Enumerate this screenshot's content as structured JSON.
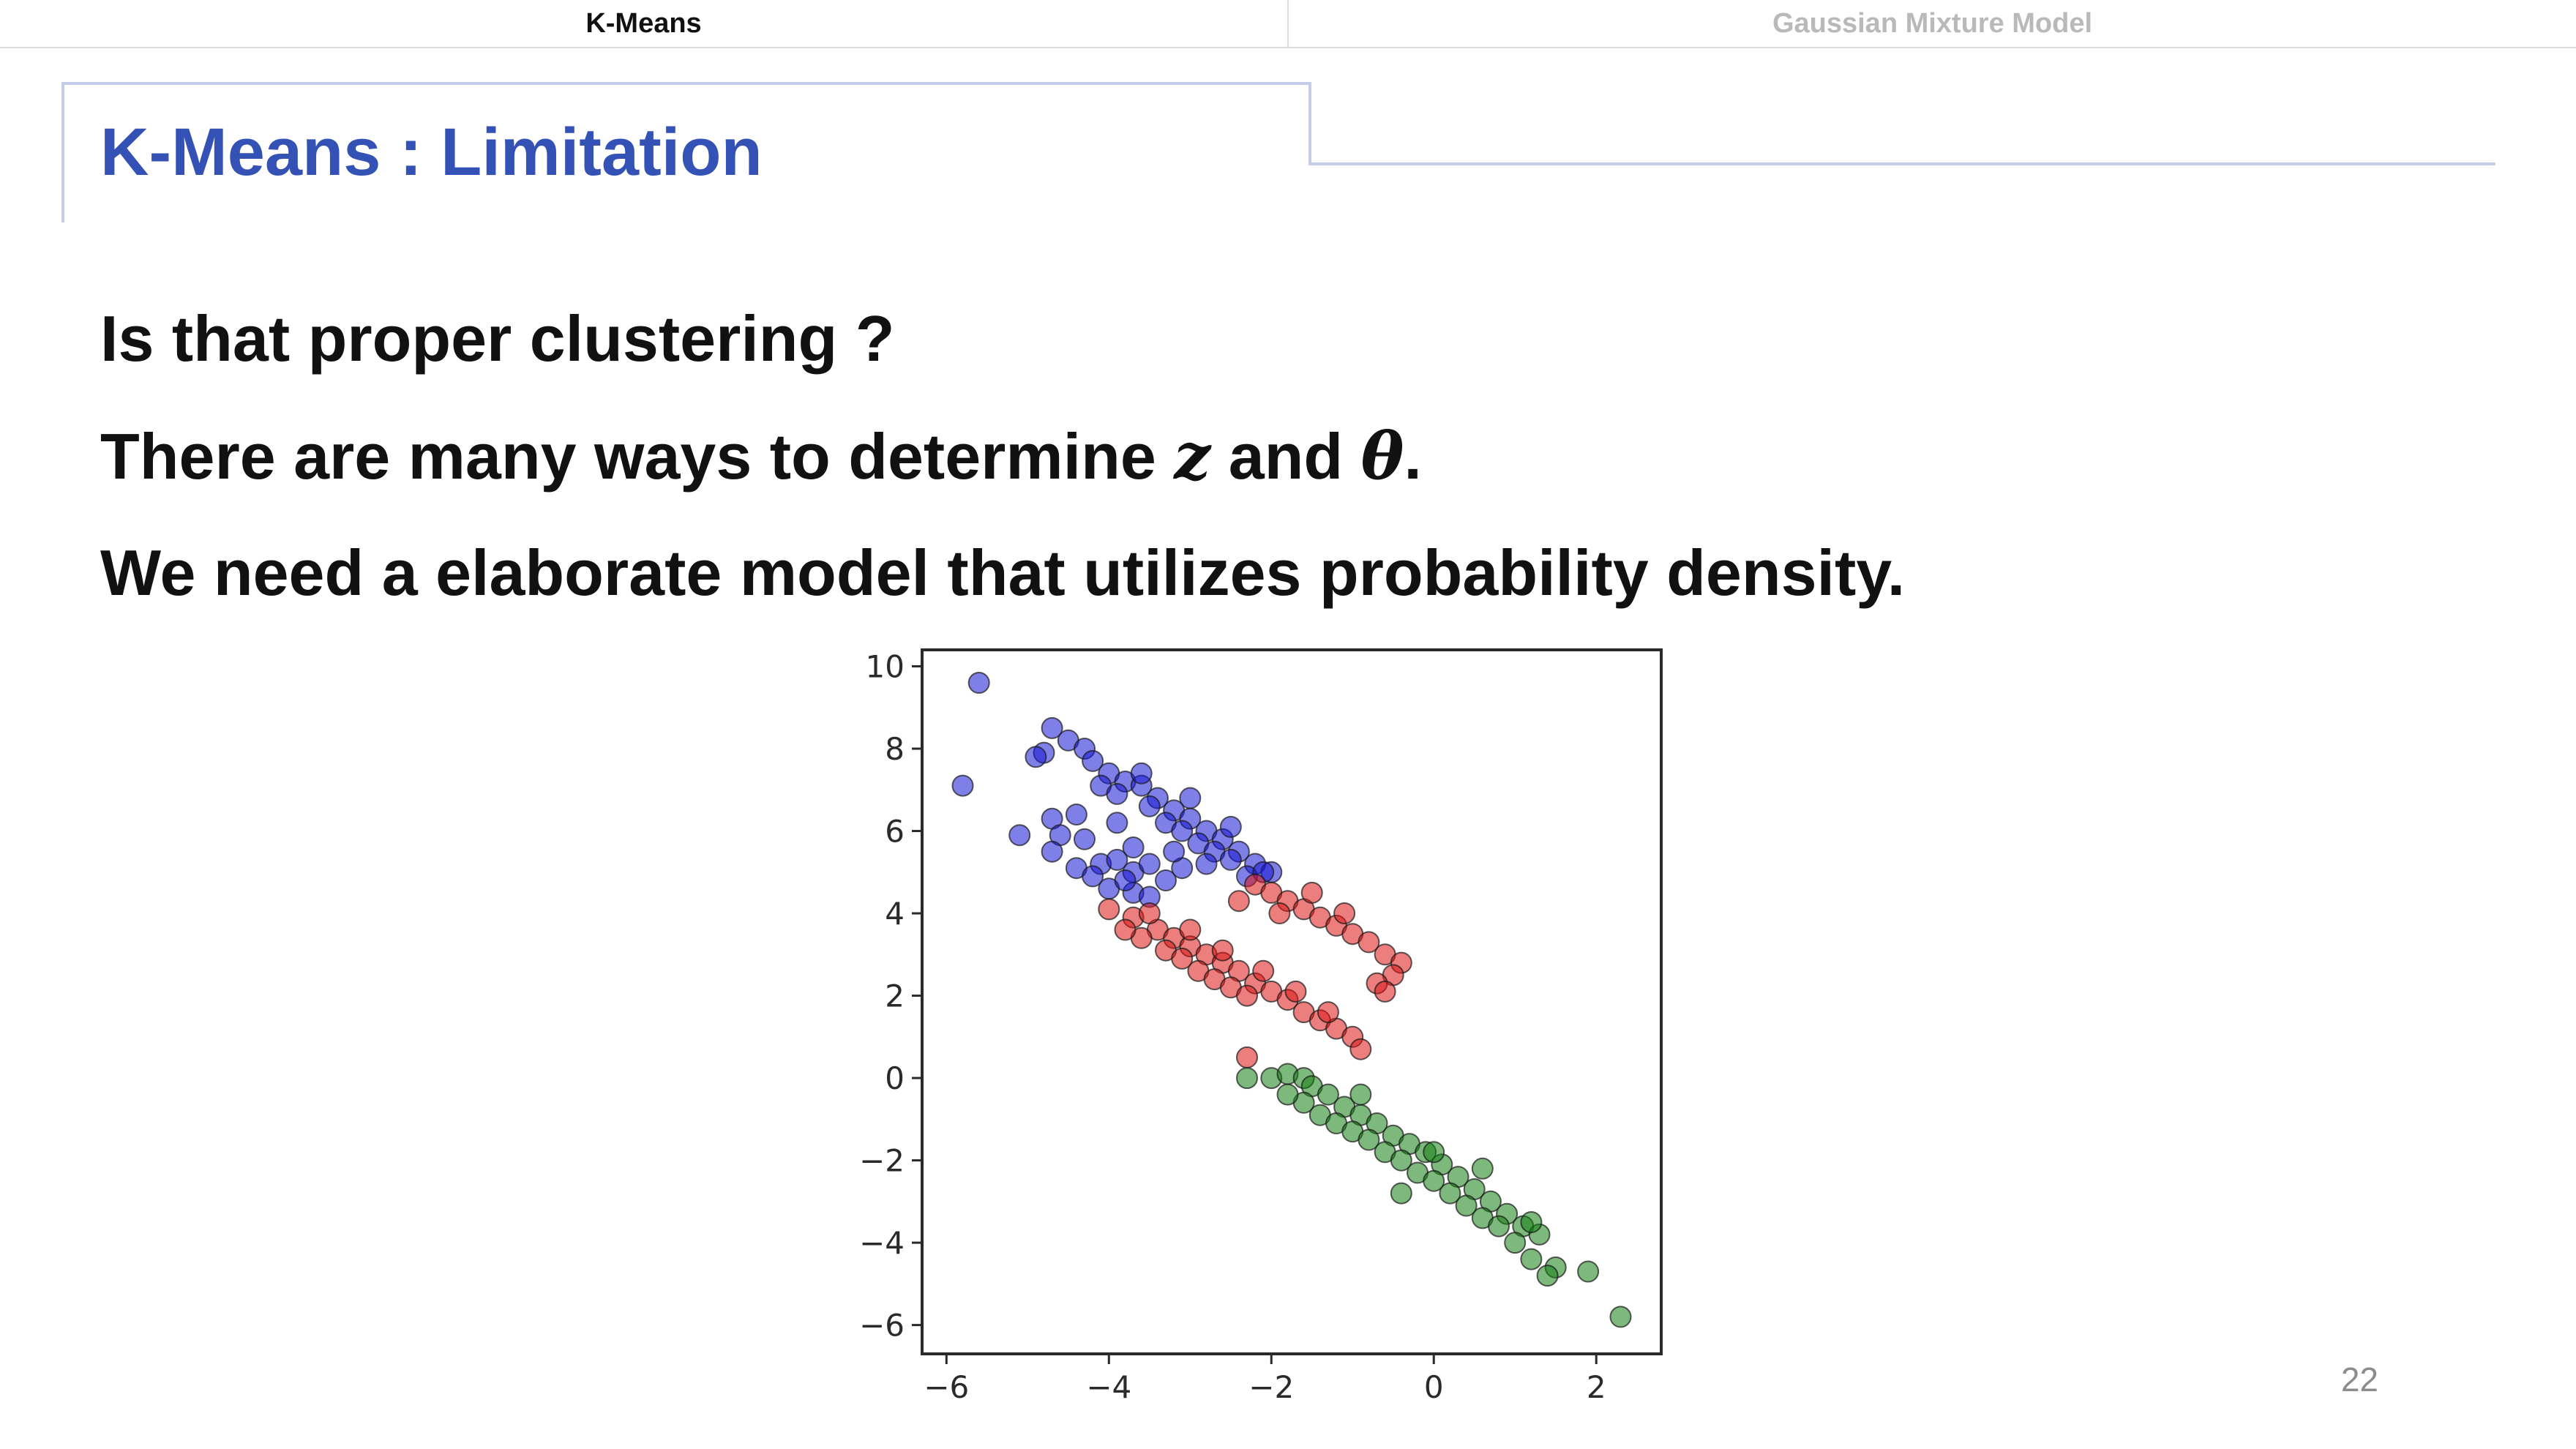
{
  "nav": {
    "tabs": [
      {
        "label": "K-Means",
        "active": true
      },
      {
        "label": "Gaussian Mixture Model",
        "active": false
      }
    ]
  },
  "slide": {
    "title": "K-Means : Limitation",
    "bullets": {
      "b1": "Is that proper clustering ?",
      "b2_pre": "There are many ways to determine ",
      "b2_z": "z",
      "b2_mid": " and ",
      "b2_theta": "θ",
      "b2_post": ".",
      "b3": "We need a elaborate model that utilizes probability density."
    },
    "page_number": "22"
  },
  "colors": {
    "title": "#3452b6",
    "frame": "#c5cde8",
    "blue": "#1515d6",
    "red": "#dc1414",
    "green": "#138013"
  },
  "chart_data": {
    "type": "scatter",
    "xlim": [
      -6.3,
      2.8
    ],
    "ylim": [
      -6.7,
      10.4
    ],
    "xticks": [
      -6,
      -4,
      -2,
      0,
      2
    ],
    "xtick_labels": [
      "−6",
      "−4",
      "−2",
      "0",
      "2"
    ],
    "yticks": [
      10,
      8,
      6,
      4,
      2,
      0,
      -2,
      -4,
      -6
    ],
    "ytick_labels": [
      "10",
      "8",
      "6",
      "4",
      "2",
      "0",
      "−2",
      "−4",
      "−6"
    ],
    "grid": false,
    "series": [
      {
        "color": "#1515d6",
        "points": [
          [
            -5.6,
            9.6
          ],
          [
            -5.8,
            7.1
          ],
          [
            -5.1,
            5.9
          ],
          [
            -4.7,
            8.5
          ],
          [
            -4.5,
            8.2
          ],
          [
            -4.8,
            7.9
          ],
          [
            -4.3,
            8.0
          ],
          [
            -4.2,
            7.7
          ],
          [
            -4.0,
            7.4
          ],
          [
            -3.8,
            7.2
          ],
          [
            -3.6,
            7.1
          ],
          [
            -3.4,
            6.8
          ],
          [
            -3.2,
            6.5
          ],
          [
            -3.0,
            6.3
          ],
          [
            -2.8,
            6.0
          ],
          [
            -2.6,
            5.8
          ],
          [
            -2.4,
            5.5
          ],
          [
            -2.2,
            5.2
          ],
          [
            -2.0,
            5.0
          ],
          [
            -4.1,
            7.1
          ],
          [
            -3.9,
            6.9
          ],
          [
            -3.5,
            6.6
          ],
          [
            -3.3,
            6.2
          ],
          [
            -3.1,
            6.0
          ],
          [
            -2.9,
            5.7
          ],
          [
            -2.7,
            5.5
          ],
          [
            -2.5,
            5.3
          ],
          [
            -3.6,
            7.4
          ],
          [
            -3.0,
            6.8
          ],
          [
            -2.5,
            6.1
          ],
          [
            -4.7,
            6.3
          ],
          [
            -4.6,
            5.9
          ],
          [
            -4.3,
            5.8
          ],
          [
            -4.7,
            5.5
          ],
          [
            -4.4,
            5.1
          ],
          [
            -4.1,
            5.2
          ],
          [
            -3.9,
            5.3
          ],
          [
            -3.7,
            5.0
          ],
          [
            -4.0,
            4.6
          ],
          [
            -3.7,
            4.5
          ],
          [
            -3.5,
            5.2
          ],
          [
            -3.3,
            4.8
          ],
          [
            -3.1,
            5.1
          ],
          [
            -4.2,
            4.9
          ],
          [
            -3.8,
            4.8
          ],
          [
            -3.5,
            4.4
          ],
          [
            -4.4,
            6.4
          ],
          [
            -3.9,
            6.2
          ],
          [
            -3.7,
            5.6
          ],
          [
            -3.2,
            5.5
          ],
          [
            -2.8,
            5.2
          ],
          [
            -2.3,
            4.9
          ],
          [
            -4.9,
            7.8
          ],
          [
            -2.1,
            5.0
          ]
        ]
      },
      {
        "color": "#dc1414",
        "points": [
          [
            -4.0,
            4.1
          ],
          [
            -3.7,
            3.9
          ],
          [
            -3.4,
            3.6
          ],
          [
            -3.2,
            3.4
          ],
          [
            -3.0,
            3.2
          ],
          [
            -2.8,
            3.0
          ],
          [
            -2.6,
            2.8
          ],
          [
            -2.4,
            2.6
          ],
          [
            -2.2,
            2.3
          ],
          [
            -2.0,
            2.1
          ],
          [
            -1.8,
            1.9
          ],
          [
            -1.6,
            1.6
          ],
          [
            -1.4,
            1.4
          ],
          [
            -1.2,
            1.2
          ],
          [
            -1.0,
            1.0
          ],
          [
            -0.9,
            0.7
          ],
          [
            -3.6,
            3.4
          ],
          [
            -3.3,
            3.1
          ],
          [
            -3.1,
            2.9
          ],
          [
            -2.9,
            2.6
          ],
          [
            -2.7,
            2.4
          ],
          [
            -2.5,
            2.2
          ],
          [
            -2.3,
            2.0
          ],
          [
            -3.5,
            4.0
          ],
          [
            -3.0,
            3.6
          ],
          [
            -2.6,
            3.1
          ],
          [
            -2.1,
            2.6
          ],
          [
            -1.7,
            2.1
          ],
          [
            -1.3,
            1.6
          ],
          [
            -2.2,
            4.7
          ],
          [
            -2.0,
            4.5
          ],
          [
            -1.8,
            4.3
          ],
          [
            -1.6,
            4.1
          ],
          [
            -1.4,
            3.9
          ],
          [
            -1.2,
            3.7
          ],
          [
            -1.0,
            3.5
          ],
          [
            -0.8,
            3.3
          ],
          [
            -0.6,
            3.0
          ],
          [
            -0.4,
            2.8
          ],
          [
            -0.5,
            2.5
          ],
          [
            -0.7,
            2.3
          ],
          [
            -0.6,
            2.1
          ],
          [
            -1.5,
            4.5
          ],
          [
            -1.1,
            4.0
          ],
          [
            -2.4,
            4.3
          ],
          [
            -1.9,
            4.0
          ],
          [
            -2.3,
            0.5
          ],
          [
            -3.8,
            3.6
          ]
        ]
      },
      {
        "color": "#138013",
        "points": [
          [
            -2.3,
            0.0
          ],
          [
            -2.0,
            0.0
          ],
          [
            -1.8,
            0.1
          ],
          [
            -1.6,
            0.0
          ],
          [
            -1.5,
            -0.2
          ],
          [
            -1.3,
            -0.4
          ],
          [
            -1.1,
            -0.7
          ],
          [
            -0.9,
            -0.9
          ],
          [
            -0.7,
            -1.1
          ],
          [
            -0.5,
            -1.4
          ],
          [
            -0.3,
            -1.6
          ],
          [
            -0.1,
            -1.8
          ],
          [
            0.1,
            -2.1
          ],
          [
            0.3,
            -2.4
          ],
          [
            0.5,
            -2.7
          ],
          [
            0.7,
            -3.0
          ],
          [
            0.9,
            -3.3
          ],
          [
            1.1,
            -3.6
          ],
          [
            1.3,
            -3.8
          ],
          [
            1.5,
            -4.6
          ],
          [
            1.9,
            -4.7
          ],
          [
            2.3,
            -5.8
          ],
          [
            -1.6,
            -0.6
          ],
          [
            -1.4,
            -0.9
          ],
          [
            -1.2,
            -1.1
          ],
          [
            -1.0,
            -1.3
          ],
          [
            -0.8,
            -1.5
          ],
          [
            -0.6,
            -1.8
          ],
          [
            -0.4,
            -2.0
          ],
          [
            -0.2,
            -2.3
          ],
          [
            0.0,
            -2.5
          ],
          [
            0.2,
            -2.8
          ],
          [
            0.4,
            -3.1
          ],
          [
            0.6,
            -3.4
          ],
          [
            0.8,
            -3.6
          ],
          [
            1.0,
            -4.0
          ],
          [
            1.2,
            -4.4
          ],
          [
            1.4,
            -4.8
          ],
          [
            1.2,
            -3.5
          ],
          [
            0.6,
            -2.2
          ],
          [
            -0.9,
            -0.4
          ],
          [
            -0.4,
            -2.8
          ],
          [
            -1.8,
            -0.4
          ],
          [
            0.0,
            -1.8
          ]
        ]
      }
    ]
  }
}
